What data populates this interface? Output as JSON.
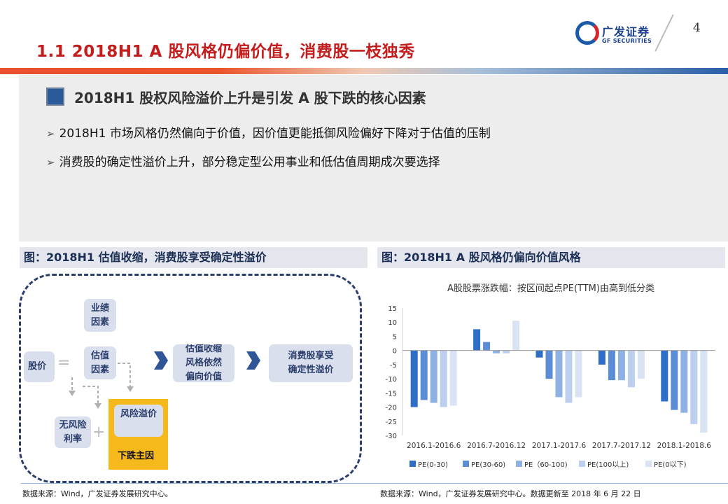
{
  "header": {
    "title": "1.1  2018H1  A 股风格仍偏价值，消费股一枝独秀",
    "page_number": "4",
    "logo_cn": "广发证券",
    "logo_en": "GF SECURITIES"
  },
  "section": {
    "subtitle": "2018H1 股权风险溢价上升是引发 A 股下跌的核心因素",
    "bullets": [
      "2018H1 市场风格仍然偏向于价值，因价值更能抵御风险偏好下降对于估值的压制",
      "消费股的确定性溢价上升，部分稳定型公用事业和低估值周期成次要选择"
    ]
  },
  "diagram": {
    "caption": "图：2018H1 估值收缩，消费股享受确定性溢价",
    "nodes": {
      "performance": "业绩\n因素",
      "valuation": "估值\n因素",
      "price": "股价",
      "equals": "=",
      "plus": "+",
      "riskfree": "无风险\n利率",
      "risk_premium": "风险溢价",
      "decline": "下跌主因",
      "shrink": "估值收缩\n风格依然\n偏向价值",
      "consumer": "消费股享受\n确定性溢价"
    },
    "source": "数据来源：Wind，广发证券发展研究中心。"
  },
  "chart_caption": "图：2018H1 A 股风格仍偏向价值风格",
  "chart_source": "数据来源：Wind，广发证券发展研究中心。数据更新至 2018 年 6 月 22 日",
  "chart_data": {
    "type": "bar",
    "title": "A股股票涨跌幅：按区间起点PE(TTM)由高到低分类",
    "categories": [
      "2016.1-2016.6",
      "2016.7-2016.12",
      "2017.1-2017.6",
      "2017.7-2017.12",
      "2018.1-2018.6"
    ],
    "ylim": [
      -30,
      15
    ],
    "yticks": [
      15,
      10,
      5,
      0,
      -5,
      -10,
      -15,
      -20,
      -25,
      -30
    ],
    "grid": false,
    "legend_position": "bottom",
    "series": [
      {
        "name": "PE(0-30)",
        "color": "#2f6ec6",
        "values": [
          -20,
          7.5,
          -2.5,
          -5,
          -18
        ]
      },
      {
        "name": "PE(30-60)",
        "color": "#5b8dd6",
        "values": [
          -17.5,
          3,
          -10,
          -10.5,
          -21
        ]
      },
      {
        "name": "PE（60-100)",
        "color": "#8fb0e3",
        "values": [
          -18.5,
          -1,
          -16.5,
          -10.5,
          -22
        ]
      },
      {
        "name": "PE(100以上)",
        "color": "#bccfee",
        "values": [
          -20,
          -1,
          -18.5,
          -13,
          -26
        ]
      },
      {
        "name": "PE(0以下)",
        "color": "#d9e3f3",
        "values": [
          -19.5,
          10.5,
          -16.5,
          -10,
          -29
        ]
      }
    ]
  }
}
